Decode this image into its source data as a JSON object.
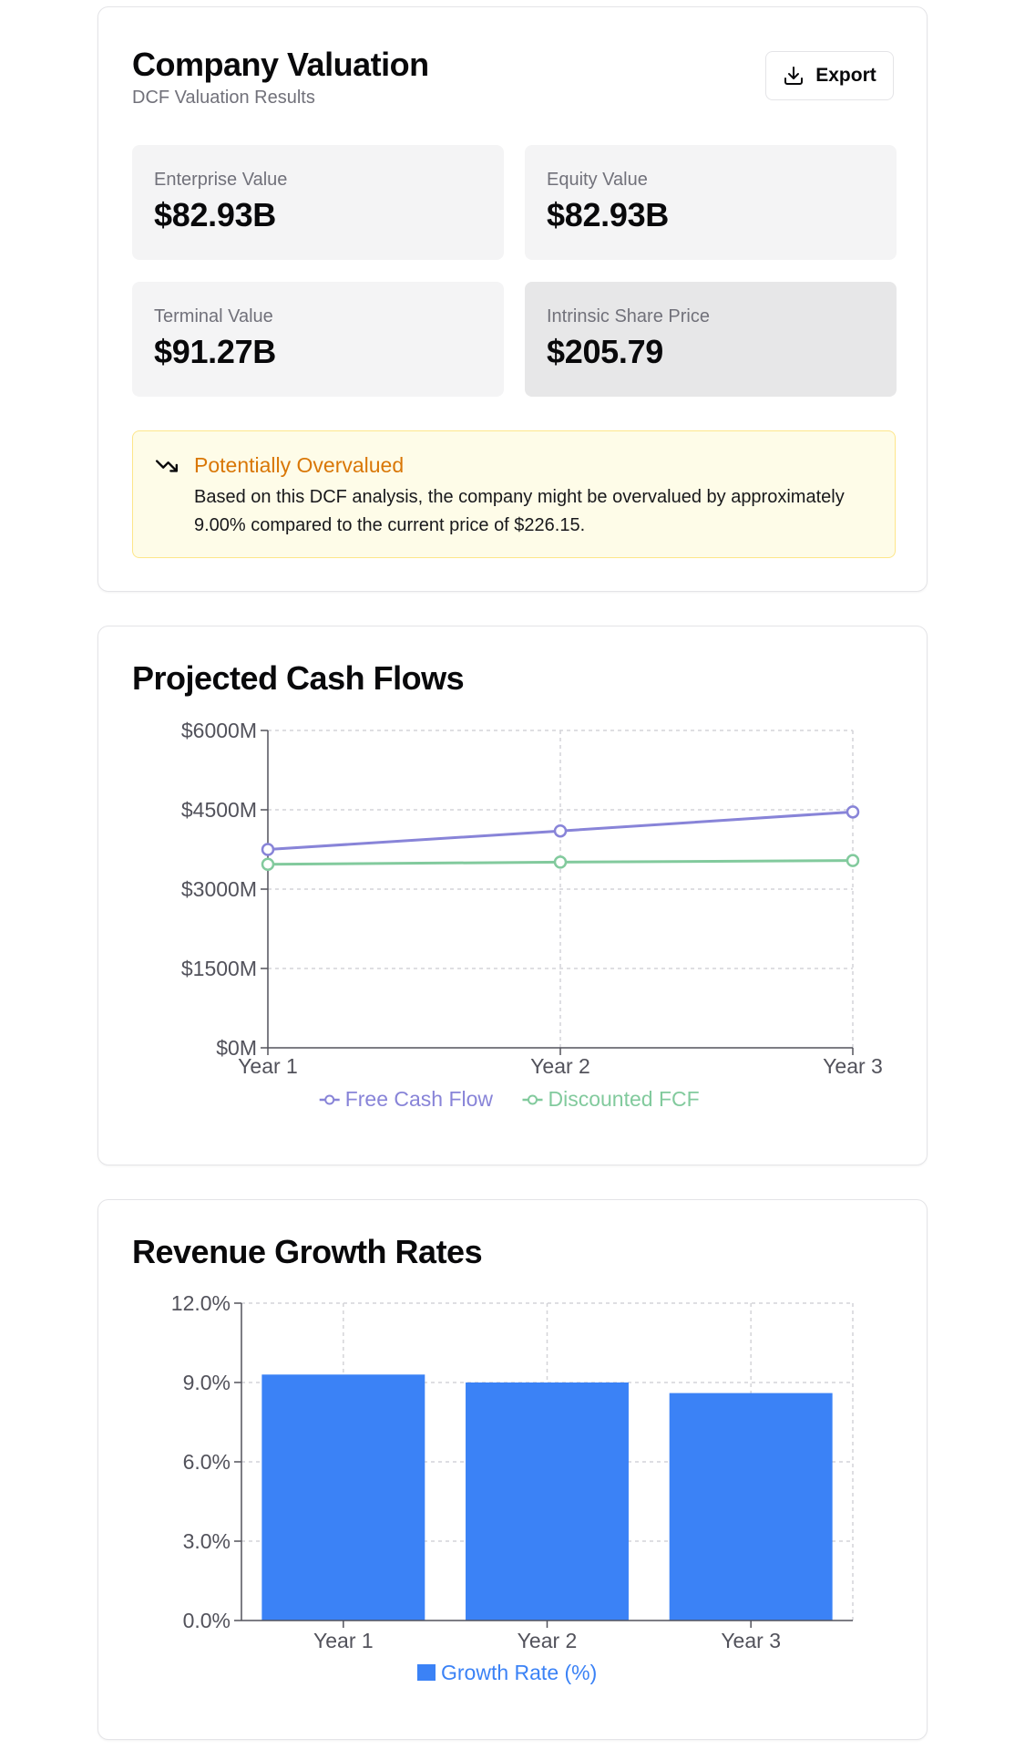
{
  "valuation": {
    "title": "Company Valuation",
    "subtitle": "DCF Valuation Results",
    "export_label": "Export",
    "metrics": [
      {
        "label": "Enterprise Value",
        "value": "$82.93B"
      },
      {
        "label": "Equity Value",
        "value": "$82.93B"
      },
      {
        "label": "Terminal Value",
        "value": "$91.27B"
      },
      {
        "label": "Intrinsic Share Price",
        "value": "$205.79"
      }
    ],
    "alert": {
      "title": "Potentially Overvalued",
      "text": "Based on this DCF analysis, the company might be overvalued by approximately 9.00% compared to the current price of $226.15."
    }
  },
  "colors": {
    "fcf": "#8884d8",
    "dfcf": "#82ca9d",
    "bar": "#3b82f6",
    "alert_accent": "#d97706"
  },
  "icons": {
    "export": "download-icon",
    "alert": "trending-down-icon"
  },
  "cashflow": {
    "title": "Projected Cash Flows",
    "chart_data": {
      "type": "line",
      "categories": [
        "Year 1",
        "Year 2",
        "Year 3"
      ],
      "series": [
        {
          "name": "Free Cash Flow",
          "values": [
            3750,
            4100,
            4460
          ]
        },
        {
          "name": "Discounted FCF",
          "values": [
            3470,
            3510,
            3540
          ]
        }
      ],
      "ylim": [
        0,
        6000
      ],
      "yticks": [
        0,
        1500,
        3000,
        4500,
        6000
      ],
      "ytick_labels": [
        "$0M",
        "$1500M",
        "$3000M",
        "$4500M",
        "$6000M"
      ],
      "grid": true,
      "legend": "bottom"
    }
  },
  "growth": {
    "title": "Revenue Growth Rates",
    "chart_data": {
      "type": "bar",
      "categories": [
        "Year 1",
        "Year 2",
        "Year 3"
      ],
      "series": [
        {
          "name": "Growth Rate (%)",
          "values": [
            9.3,
            9.0,
            8.6
          ]
        }
      ],
      "ylim": [
        0,
        12
      ],
      "yticks": [
        0,
        3,
        6,
        9,
        12
      ],
      "ytick_labels": [
        "0.0%",
        "3.0%",
        "6.0%",
        "9.0%",
        "12.0%"
      ],
      "grid": true,
      "legend": "bottom"
    }
  }
}
